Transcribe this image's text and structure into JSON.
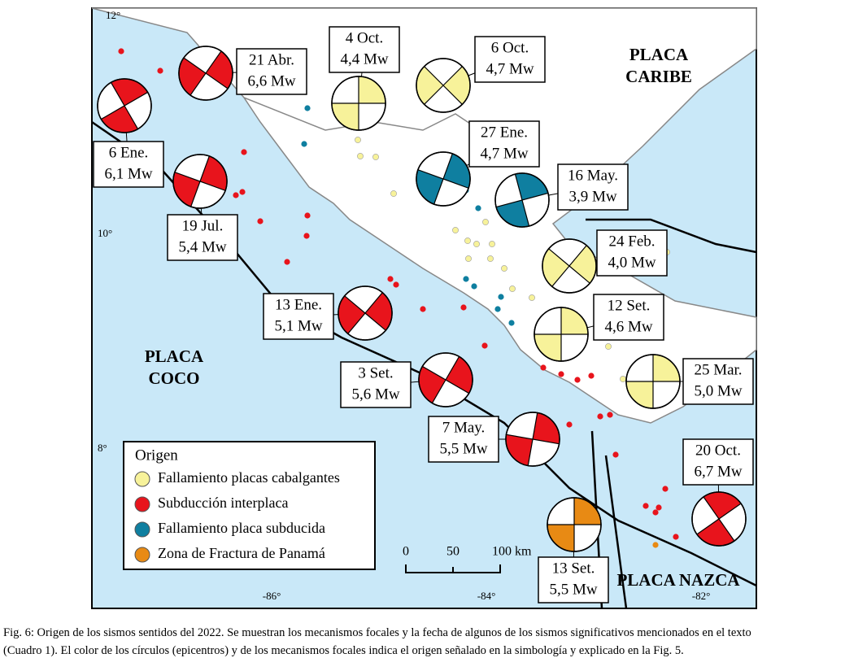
{
  "map": {
    "lat_labels": [
      "12°",
      "10°",
      "8°"
    ],
    "lon_labels": [
      "-86°",
      "-84°",
      "-82°"
    ],
    "plates": [
      "PLACA CARIBE",
      "PLACA COCO",
      "PLACA NAZCA"
    ],
    "events": [
      {
        "date": "21 Abr.",
        "magnitude": "6,6 Mw"
      },
      {
        "date": "6 Ene.",
        "magnitude": "6,1 Mw"
      },
      {
        "date": "19 Jul.",
        "magnitude": "5,4 Mw"
      },
      {
        "date": "4 Oct.",
        "magnitude": "4,4 Mw"
      },
      {
        "date": "6 Oct.",
        "magnitude": "4,7 Mw"
      },
      {
        "date": "27 Ene.",
        "magnitude": "4,7 Mw"
      },
      {
        "date": "16 May.",
        "magnitude": "3,9 Mw"
      },
      {
        "date": "24 Feb.",
        "magnitude": "4,0 Mw"
      },
      {
        "date": "12 Set.",
        "magnitude": "4,6 Mw"
      },
      {
        "date": "13 Ene.",
        "magnitude": "5,1 Mw"
      },
      {
        "date": "3 Set.",
        "magnitude": "5,6 Mw"
      },
      {
        "date": "25 Mar.",
        "magnitude": "5,0 Mw"
      },
      {
        "date": "7 May.",
        "magnitude": "5,5 Mw"
      },
      {
        "date": "20 Oct.",
        "magnitude": "6,7 Mw"
      },
      {
        "date": "13 Set.",
        "magnitude": "5,5 Mw"
      }
    ],
    "legend": {
      "title": "Origen",
      "items": [
        "Fallamiento placas cabalgantes",
        "Subducción interplaca",
        "Fallamiento placa subducida",
        "Zona de Fractura de Panamá"
      ]
    },
    "scale": [
      "0",
      "50",
      "100 km"
    ]
  },
  "caption": [
    "Fig. 6: Origen de los sismos sentidos del 2022. Se muestran los mecanismos focales y la fecha de algunos de los sismos significativos mencionados en el texto",
    "(Cuadro 1). El color de los círculos (epicentros) y de los mecanismos focales indica el origen señalado en la simbología y explicado en la Fig. 5."
  ]
}
